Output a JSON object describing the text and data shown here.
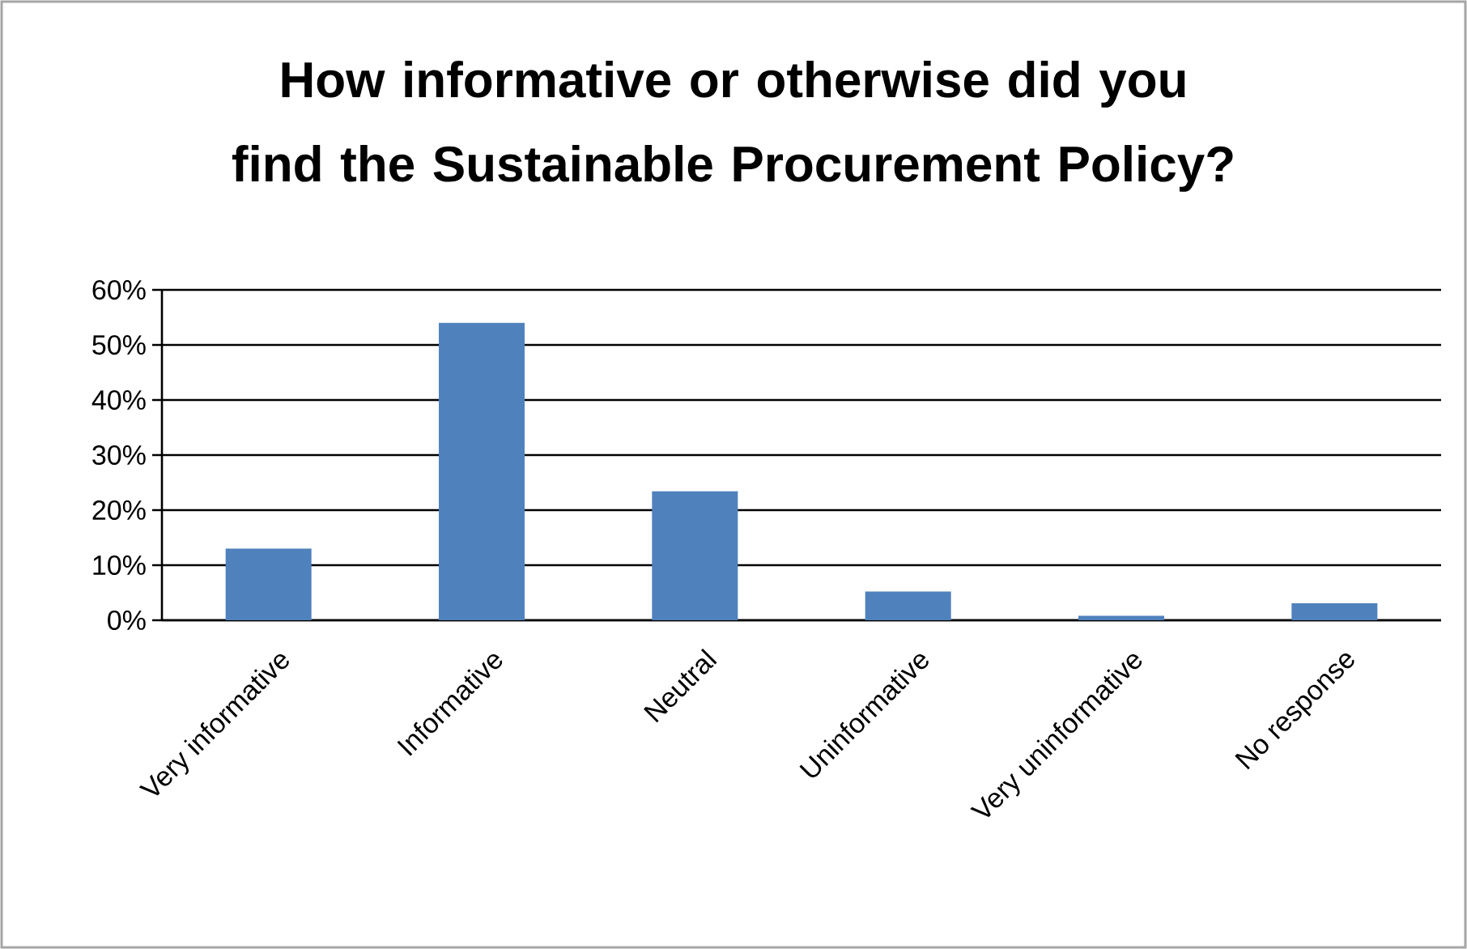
{
  "chart_data": {
    "type": "bar",
    "title": "How informative or otherwise did you find the Sustainable Procurement Policy?",
    "categories": [
      "Very informative",
      "Informative",
      "Neutral",
      "Uninformative",
      "Very uninformative",
      "No response"
    ],
    "values": [
      13,
      54,
      23.4,
      5.2,
      0.8,
      3.1
    ],
    "color": "#4f81bd",
    "ylim": [
      0,
      60
    ],
    "yticks": [
      {
        "value": 0,
        "label": "0%"
      },
      {
        "value": 10,
        "label": "10%"
      },
      {
        "value": 20,
        "label": "20%"
      },
      {
        "value": 30,
        "label": "30%"
      },
      {
        "value": 40,
        "label": "40%"
      },
      {
        "value": 50,
        "label": "50%"
      },
      {
        "value": 60,
        "label": "60%"
      }
    ],
    "grid": "y"
  }
}
